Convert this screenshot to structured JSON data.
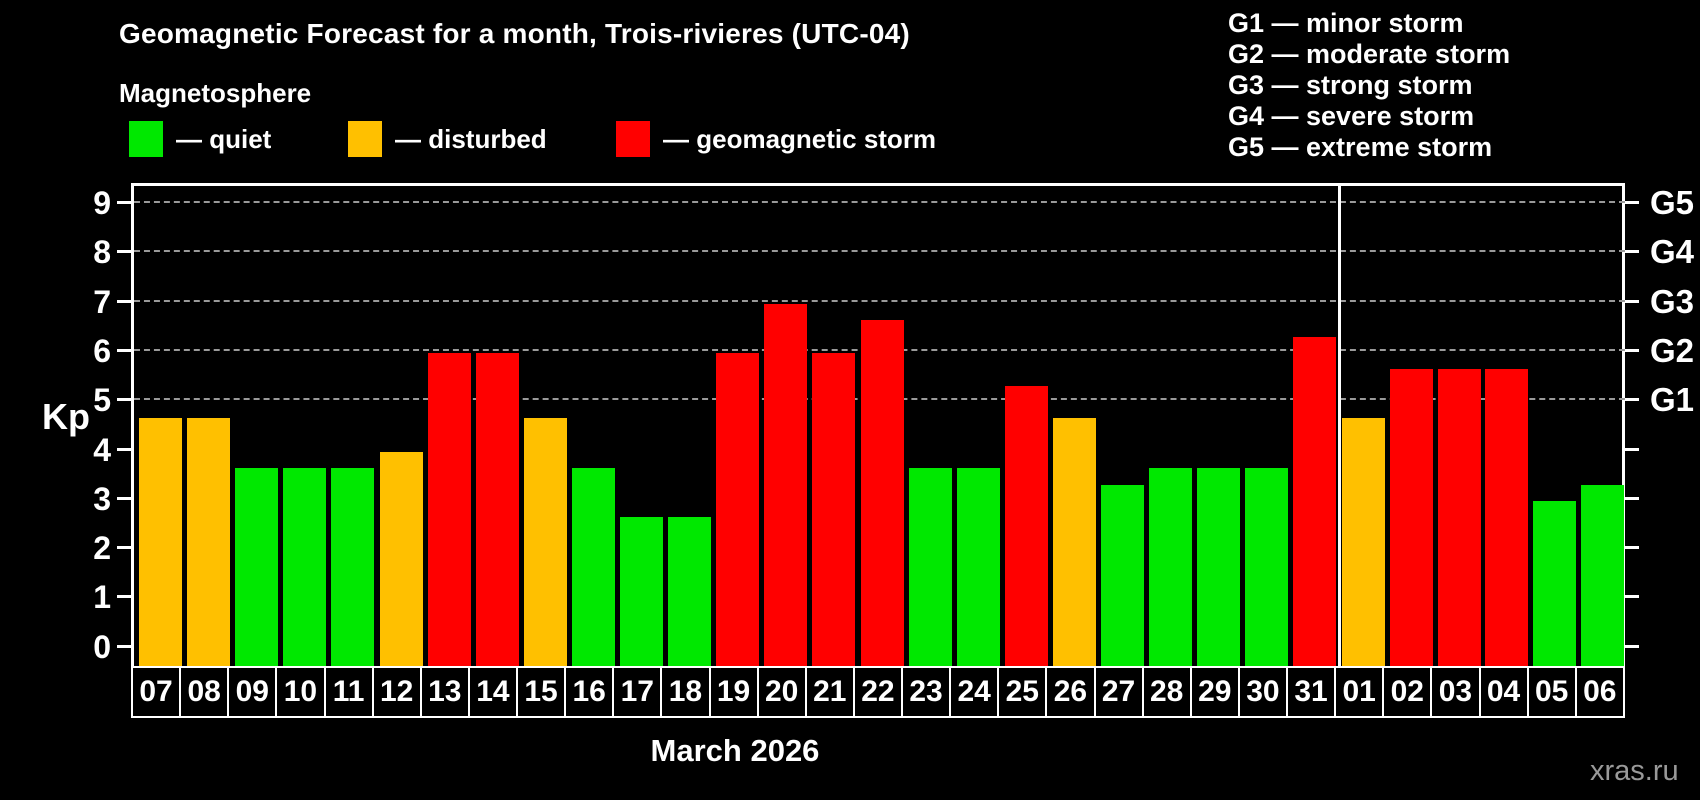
{
  "header": {
    "title": "Geomagnetic Forecast for a month, Trois-rivieres (UTC-04)",
    "subtitle": "Magnetosphere"
  },
  "legend": {
    "items": [
      {
        "key": "quiet",
        "label": "— quiet",
        "color": "#00e800"
      },
      {
        "key": "disturbed",
        "label": "— disturbed",
        "color": "#ffc000"
      },
      {
        "key": "storm",
        "label": "— geomagnetic storm",
        "color": "#ff0000"
      }
    ]
  },
  "g_scale_legend": {
    "items": [
      "G1 — minor storm",
      "G2 — moderate storm",
      "G3 — strong storm",
      "G4 — severe storm",
      "G5 — extreme storm"
    ]
  },
  "watermark": "xras.ru",
  "chart_data": {
    "type": "bar",
    "title": "Geomagnetic Forecast for a month, Trois-rivieres (UTC-04)",
    "xlabel": "March 2026",
    "ylabel": "Kp",
    "ylim": [
      0,
      9
    ],
    "yticks": [
      0,
      1,
      2,
      3,
      4,
      5,
      6,
      7,
      8,
      9
    ],
    "grid_levels": [
      5,
      6,
      7,
      8,
      9
    ],
    "right_axis_labels": [
      {
        "label": "G1",
        "kp": 5
      },
      {
        "label": "G2",
        "kp": 6
      },
      {
        "label": "G3",
        "kp": 7
      },
      {
        "label": "G4",
        "kp": 8
      },
      {
        "label": "G5",
        "kp": 9
      }
    ],
    "legend_position": "top",
    "month_separator_after_index": 24,
    "categories": [
      "07",
      "08",
      "09",
      "10",
      "11",
      "12",
      "13",
      "14",
      "15",
      "16",
      "17",
      "18",
      "19",
      "20",
      "21",
      "22",
      "23",
      "24",
      "25",
      "26",
      "27",
      "28",
      "29",
      "30",
      "31",
      "01",
      "02",
      "03",
      "04",
      "05",
      "06"
    ],
    "values": [
      4.67,
      4.67,
      3.67,
      3.67,
      3.67,
      4.0,
      6.0,
      6.0,
      4.67,
      3.67,
      2.67,
      2.67,
      6.0,
      7.0,
      6.0,
      6.67,
      3.67,
      3.67,
      5.33,
      4.67,
      3.33,
      3.67,
      3.67,
      3.67,
      6.33,
      4.67,
      5.67,
      5.67,
      5.67,
      3.0,
      3.33
    ],
    "status": [
      "disturbed",
      "disturbed",
      "quiet",
      "quiet",
      "quiet",
      "disturbed",
      "storm",
      "storm",
      "disturbed",
      "quiet",
      "quiet",
      "quiet",
      "storm",
      "storm",
      "storm",
      "storm",
      "quiet",
      "quiet",
      "storm",
      "disturbed",
      "quiet",
      "quiet",
      "quiet",
      "quiet",
      "storm",
      "disturbed",
      "storm",
      "storm",
      "storm",
      "quiet",
      "quiet"
    ]
  }
}
